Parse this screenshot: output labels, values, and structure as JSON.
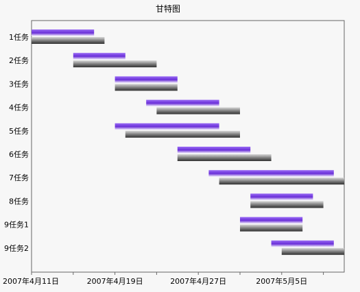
{
  "chart_data": {
    "type": "gantt",
    "title": "甘特图",
    "x_axis": {
      "type": "date",
      "min": "2007-04-11",
      "max": "2007-05-11",
      "tick_dates": [
        "2007-04-11",
        "2007-04-19",
        "2007-04-27",
        "2007-05-05"
      ],
      "tick_labels": [
        "2007年4月11日",
        "2007年4月19日",
        "2007年4月27日",
        "2007年5月5日"
      ]
    },
    "grid": false,
    "legend": "none",
    "series_colors": {
      "planned": "#7b3fe4",
      "actual": "#707070"
    },
    "tasks": [
      {
        "label": "1任务",
        "planned": [
          "2007-04-11",
          "2007-04-17"
        ],
        "actual": [
          "2007-04-11",
          "2007-04-18"
        ]
      },
      {
        "label": "2任务",
        "planned": [
          "2007-04-15",
          "2007-04-20"
        ],
        "actual": [
          "2007-04-15",
          "2007-04-23"
        ]
      },
      {
        "label": "3任务",
        "planned": [
          "2007-04-19",
          "2007-04-25"
        ],
        "actual": [
          "2007-04-19",
          "2007-04-25"
        ]
      },
      {
        "label": "4任务",
        "planned": [
          "2007-04-22",
          "2007-04-29"
        ],
        "actual": [
          "2007-04-23",
          "2007-05-01"
        ]
      },
      {
        "label": "5任务",
        "planned": [
          "2007-04-19",
          "2007-04-29"
        ],
        "actual": [
          "2007-04-20",
          "2007-05-01"
        ]
      },
      {
        "label": "6任务",
        "planned": [
          "2007-04-25",
          "2007-05-02"
        ],
        "actual": [
          "2007-04-25",
          "2007-05-04"
        ]
      },
      {
        "label": "7任务",
        "planned": [
          "2007-04-28",
          "2007-05-10"
        ],
        "actual": [
          "2007-04-29",
          "2007-05-11"
        ]
      },
      {
        "label": "8任务",
        "planned": [
          "2007-05-02",
          "2007-05-08"
        ],
        "actual": [
          "2007-05-02",
          "2007-05-09"
        ]
      },
      {
        "label": "9任务1",
        "planned": [
          "2007-05-01",
          "2007-05-07"
        ],
        "actual": [
          "2007-05-01",
          "2007-05-07"
        ]
      },
      {
        "label": "9任务2",
        "planned": [
          "2007-05-04",
          "2007-05-10"
        ],
        "actual": [
          "2007-05-05",
          "2007-05-11"
        ]
      }
    ]
  }
}
